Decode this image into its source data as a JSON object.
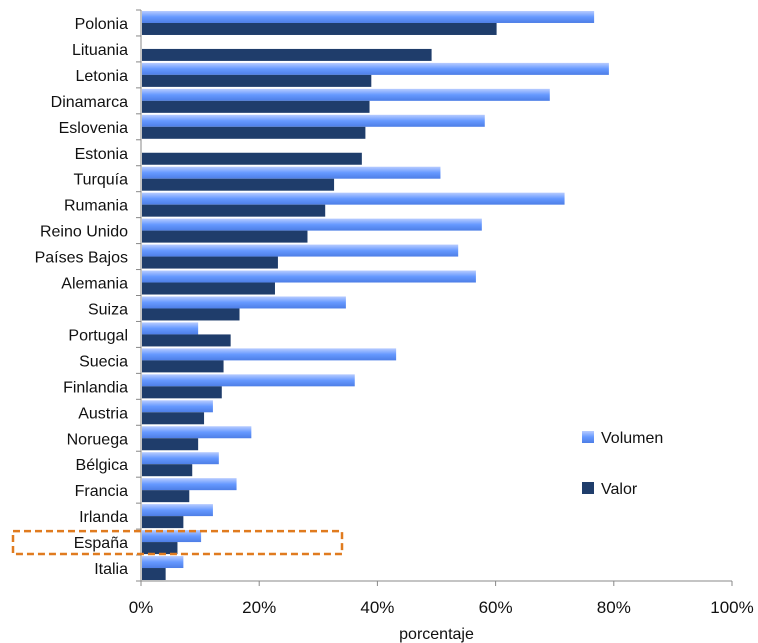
{
  "chart_data": {
    "type": "bar",
    "orientation": "horizontal",
    "categories": [
      "Polonia",
      "Lituania",
      "Letonia",
      "Dinamarca",
      "Eslovenia",
      "Estonia",
      "Turquía",
      "Rumania",
      "Reino Unido",
      "Países Bajos",
      "Alemania",
      "Suiza",
      "Portugal",
      "Suecia",
      "Finlandia",
      "Austria",
      "Noruega",
      "Bélgica",
      "Francia",
      "Irlanda",
      "España",
      "Italia"
    ],
    "series": [
      {
        "name": "Volumen",
        "color": "#6699ff",
        "values": [
          76.5,
          0,
          79,
          69,
          58,
          0,
          50.5,
          71.5,
          57.5,
          53.5,
          56.5,
          34.5,
          9.5,
          43,
          36,
          12,
          18.5,
          13,
          16,
          12,
          10,
          7
        ]
      },
      {
        "name": "Valor",
        "color": "#1f3d6b",
        "values": [
          60,
          49,
          38.8,
          38.5,
          37.8,
          37.2,
          32.5,
          31,
          28,
          23,
          22.5,
          16.5,
          15,
          13.8,
          13.5,
          10.5,
          9.5,
          8.5,
          8,
          7,
          6,
          4
        ]
      }
    ],
    "xlabel": "porcentaje",
    "xticks": [
      "0%",
      "20%",
      "40%",
      "60%",
      "80%",
      "100%"
    ],
    "xlim": [
      0,
      100
    ],
    "legend_position": "right",
    "highlight": {
      "category": "España",
      "color": "#e07b1f",
      "style": "dashed-box"
    }
  }
}
